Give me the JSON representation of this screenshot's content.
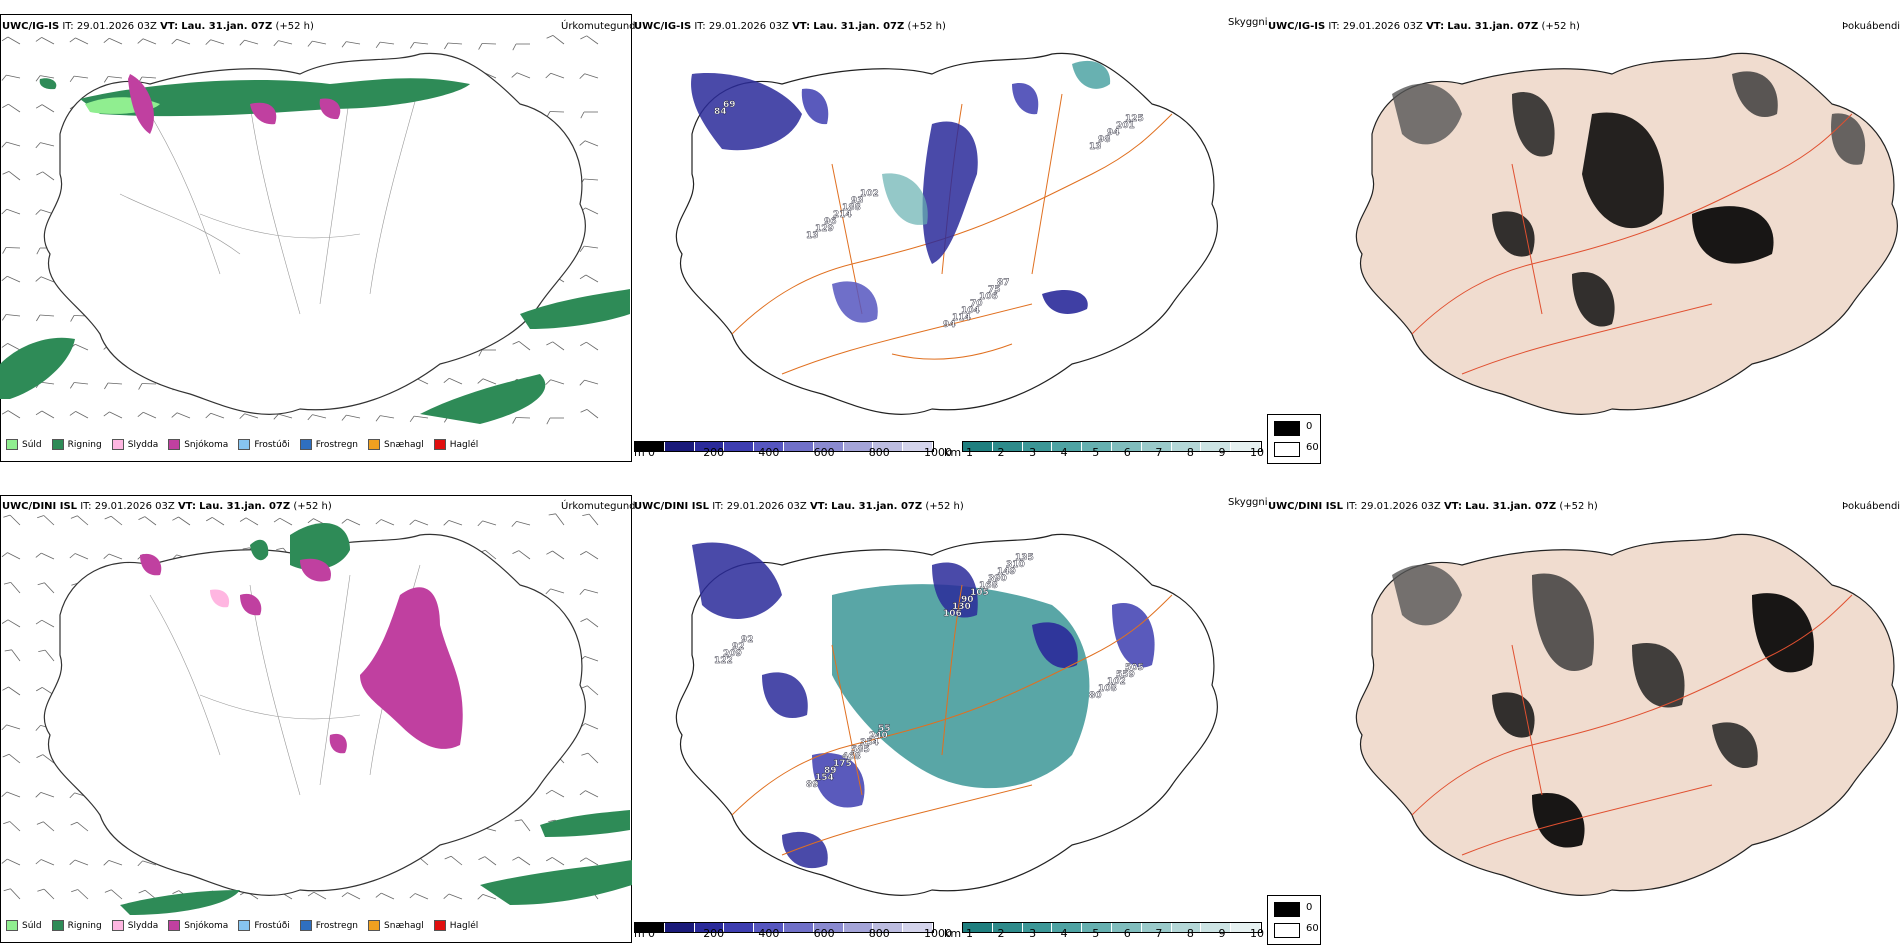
{
  "rows": [
    {
      "model": "UWC/IG-IS",
      "it_label": "IT:",
      "it_value": "29.01.2026 03Z",
      "vt_label": "VT:",
      "vt_value": "Lau. 31.jan. 07Z",
      "lead": "(+52 h)",
      "panel_titles": [
        "Úrkomutegund",
        "Skyggni",
        "Þokuábendi"
      ]
    },
    {
      "model": "UWC/DINI ISL",
      "it_label": "IT:",
      "it_value": "29.01.2026 03Z",
      "vt_label": "VT:",
      "vt_value": "Lau. 31.jan. 07Z",
      "lead": "(+52 h)",
      "panel_titles": [
        "Úrkomutegund",
        "Skyggni",
        "Þokuábendi"
      ]
    }
  ],
  "precip_legend": [
    {
      "label": "Súld",
      "color": "#90ee90"
    },
    {
      "label": "Rigning",
      "color": "#2e8b57"
    },
    {
      "label": "Slydda",
      "color": "#ffb6e1"
    },
    {
      "label": "Snjókoma",
      "color": "#c040a0"
    },
    {
      "label": "Frostúði",
      "color": "#87c4f0"
    },
    {
      "label": "Frostregn",
      "color": "#2f6fbf"
    },
    {
      "label": "Snæhagl",
      "color": "#f0a020"
    },
    {
      "label": "Haglél",
      "color": "#e01010"
    }
  ],
  "visibility_legend": {
    "m_unit": "m",
    "m_ticks": [
      "0",
      "200",
      "400",
      "600",
      "800",
      "1000"
    ],
    "m_colors": [
      "#000000",
      "#1a1a7a",
      "#2a2a9a",
      "#3d3db0",
      "#5656c0",
      "#7070c8",
      "#8a8ad0",
      "#a4a4d8",
      "#bcbce0",
      "#d4d4ec"
    ],
    "km_unit": "km",
    "km_ticks": [
      "1",
      "2",
      "3",
      "4",
      "5",
      "6",
      "7",
      "8",
      "9",
      "10"
    ],
    "km_colors": [
      "#1f7f7f",
      "#2e8b8b",
      "#3c9797",
      "#4ea3a3",
      "#66b0b0",
      "#80bdbd",
      "#9acaca",
      "#b4d7d7",
      "#cde4e4",
      "#e6f1f1"
    ]
  },
  "fog_legend": {
    "top": "0",
    "bottom": "60"
  },
  "visibility_labels_top": [
    "69",
    "102",
    "87",
    "84",
    "93",
    "75",
    "125",
    "188",
    "106",
    "201",
    "214",
    "70",
    "94",
    "96",
    "104",
    "98",
    "129",
    "114",
    "13",
    "13",
    "94"
  ],
  "visibility_labels_bottom": [
    "92",
    "55",
    "135",
    "92",
    "240",
    "310",
    "209",
    "354",
    "149",
    "122",
    "585",
    "390",
    "505",
    "468",
    "168",
    "559",
    "175",
    "105",
    "102",
    "89",
    "90",
    "108",
    "154",
    "130",
    "80",
    "89",
    "106"
  ]
}
